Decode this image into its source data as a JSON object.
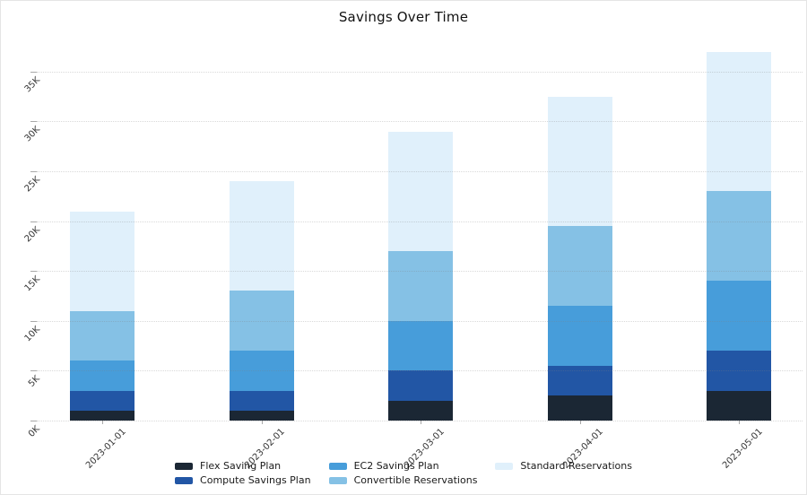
{
  "title": "Savings Over Time",
  "chart_data": {
    "type": "bar",
    "stacked": true,
    "title": "Savings Over Time",
    "xlabel": "",
    "ylabel": "",
    "categories": [
      "2023-01-01",
      "2023-02-01",
      "2023-03-01",
      "2023-04-01",
      "2023-05-01"
    ],
    "series": [
      {
        "name": "Flex Saving Plan",
        "color": "#1b2734",
        "values": [
          1000,
          1000,
          2000,
          2500,
          3000
        ]
      },
      {
        "name": "Compute Savings Plan",
        "color": "#2256a5",
        "values": [
          2000,
          2000,
          3000,
          3000,
          4000
        ]
      },
      {
        "name": "EC2 Savings Plan",
        "color": "#479dda",
        "values": [
          3000,
          4000,
          5000,
          6000,
          7000
        ]
      },
      {
        "name": "Convertible Reservations",
        "color": "#85c1e5",
        "values": [
          5000,
          6000,
          7000,
          8000,
          9000
        ]
      },
      {
        "name": "Standard Reservations",
        "color": "#e0f0fb",
        "values": [
          10000,
          11000,
          12000,
          13000,
          14000
        ]
      }
    ],
    "totals": [
      21000,
      24000,
      29000,
      32500,
      37000
    ],
    "y_tick_labels": [
      "0K",
      "5K",
      "10K",
      "15K",
      "20K",
      "25K",
      "30K",
      "35K"
    ],
    "y_tick_values": [
      0,
      5000,
      10000,
      15000,
      20000,
      25000,
      30000,
      35000
    ],
    "ylim": [
      0,
      38000
    ],
    "grid": "horizontal-dotted",
    "legend_position": "bottom",
    "tick_rotation_deg": 45
  }
}
